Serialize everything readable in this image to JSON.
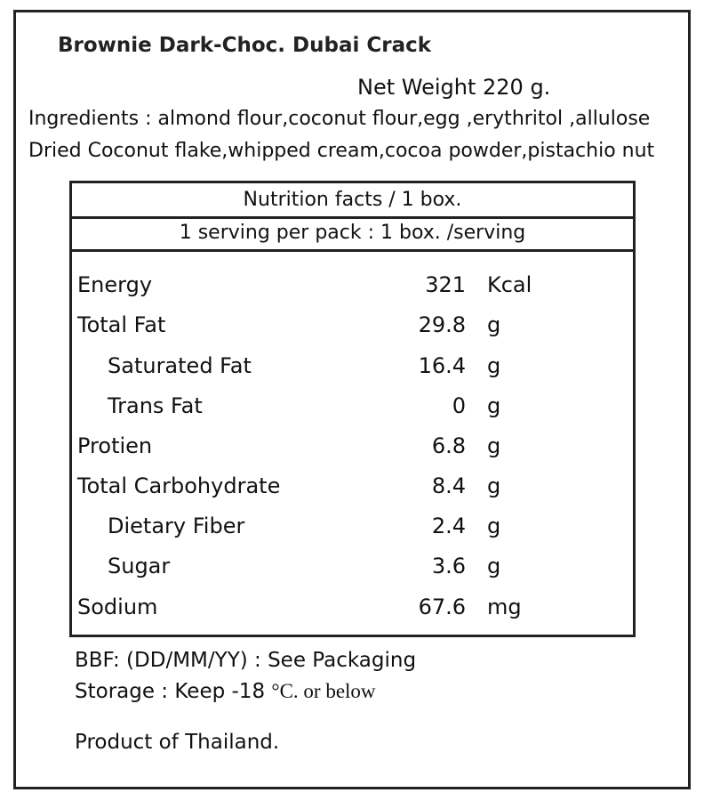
{
  "label": {
    "title": "Brownie Dark-Choc. Dubai Crack",
    "net_weight": "Net Weight 220 g.",
    "ingredients_line1": "Ingredients : almond flour,coconut flour,egg  ,erythritol ,allulose",
    "ingredients_line2": "Dried Coconut flake,whipped cream,cocoa powder,pistachio nut"
  },
  "nutrition": {
    "header": "Nutrition facts / 1 box.",
    "serving": "1 serving per pack : 1 box. /serving",
    "rows": [
      {
        "name": "Energy",
        "amount": "321",
        "unit": "Kcal"
      },
      {
        "name": "Total Fat",
        "amount": "29.8",
        "unit": "g"
      },
      {
        "name": "Saturated Fat",
        "amount": "16.4",
        "unit": "g"
      },
      {
        "name": "Trans Fat",
        "amount": "0",
        "unit": "g"
      },
      {
        "name": "Protien",
        "amount": "6.8",
        "unit": "g"
      },
      {
        "name": "Total Carbohydrate",
        "amount": "8.4",
        "unit": "g"
      },
      {
        "name": "Dietary Fiber",
        "amount": "2.4",
        "unit": "g"
      },
      {
        "name": "Sugar",
        "amount": "3.6",
        "unit": "g"
      },
      {
        "name": "Sodium",
        "amount": "67.6",
        "unit": "mg"
      }
    ]
  },
  "footer": {
    "bbf": "BBF: (DD/MM/YY) : See Packaging",
    "storage_prefix": "Storage : Keep -18 ",
    "storage_suffix": "°C. or below",
    "origin": "Product of Thailand."
  }
}
